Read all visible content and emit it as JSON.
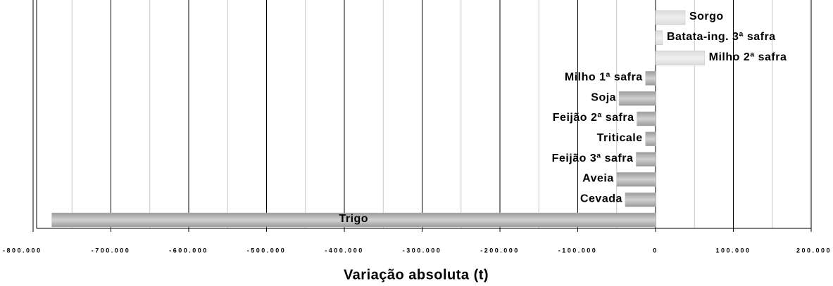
{
  "chart_data": {
    "type": "barh",
    "xlabel": "Variação absoluta (t)",
    "categories": [
      "Sorgo",
      "Batata-ing. 3ª safra",
      "Milho 2ª safra",
      "Milho 1ª safra",
      "Soja",
      "Feijão 2ª safra",
      "Triticale",
      "Feijão 3ª safra",
      "Aveia",
      "Cevada",
      "Trigo"
    ],
    "values": [
      38000,
      9000,
      63000,
      -13000,
      -47000,
      -24000,
      -13000,
      -25000,
      -50000,
      -39000,
      -776000
    ],
    "colors": [
      "#dcdcdc",
      "#dcdcdc",
      "#dcdcdc",
      "#9a9a9a",
      "#9a9a9a",
      "#9a9a9a",
      "#9a9a9a",
      "#9a9a9a",
      "#9a9a9a",
      "#9a9a9a",
      "#9a9a9a"
    ],
    "xlim": [
      -800000,
      200000
    ],
    "xticks": [
      {
        "value": -800000,
        "label": "-800.000"
      },
      {
        "value": -700000,
        "label": "-700.000"
      },
      {
        "value": -600000,
        "label": "-600.000"
      },
      {
        "value": -500000,
        "label": "-500.000"
      },
      {
        "value": -400000,
        "label": "-400.000"
      },
      {
        "value": -300000,
        "label": "-300.000"
      },
      {
        "value": -200000,
        "label": "-200.000"
      },
      {
        "value": -100000,
        "label": "-100.000"
      },
      0,
      {
        "value": 100000,
        "label": "100.000"
      },
      {
        "value": 200000,
        "label": "200.000"
      }
    ],
    "minor_xticks": [
      -750000,
      -650000,
      -550000,
      -450000,
      -350000,
      -250000,
      -150000,
      -50000,
      50000,
      150000
    ],
    "grid": true
  }
}
